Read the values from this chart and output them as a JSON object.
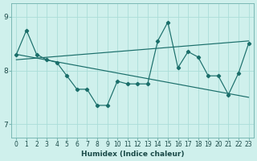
{
  "xlabel": "Humidex (Indice chaleur)",
  "bg_color": "#cff0ec",
  "grid_color": "#aaddd8",
  "line_color": "#1a6e6a",
  "xlim": [
    -0.5,
    23.5
  ],
  "ylim": [
    6.75,
    9.25
  ],
  "yticks": [
    7,
    8,
    9
  ],
  "xticks": [
    0,
    1,
    2,
    3,
    4,
    5,
    6,
    7,
    8,
    9,
    10,
    11,
    12,
    13,
    14,
    15,
    16,
    17,
    18,
    19,
    20,
    21,
    22,
    23
  ],
  "series1": [
    8.3,
    8.75,
    8.3,
    8.2,
    8.15,
    7.9,
    7.65,
    7.65,
    7.35,
    7.35,
    7.8,
    7.75,
    7.75,
    7.75,
    8.55,
    8.9,
    8.05,
    8.35,
    8.25,
    7.9,
    7.9,
    7.55,
    7.95,
    8.5
  ],
  "series2": [
    [
      0,
      8.3
    ],
    [
      23,
      7.5
    ]
  ],
  "series3": [
    [
      0,
      8.2
    ],
    [
      23,
      8.55
    ]
  ]
}
